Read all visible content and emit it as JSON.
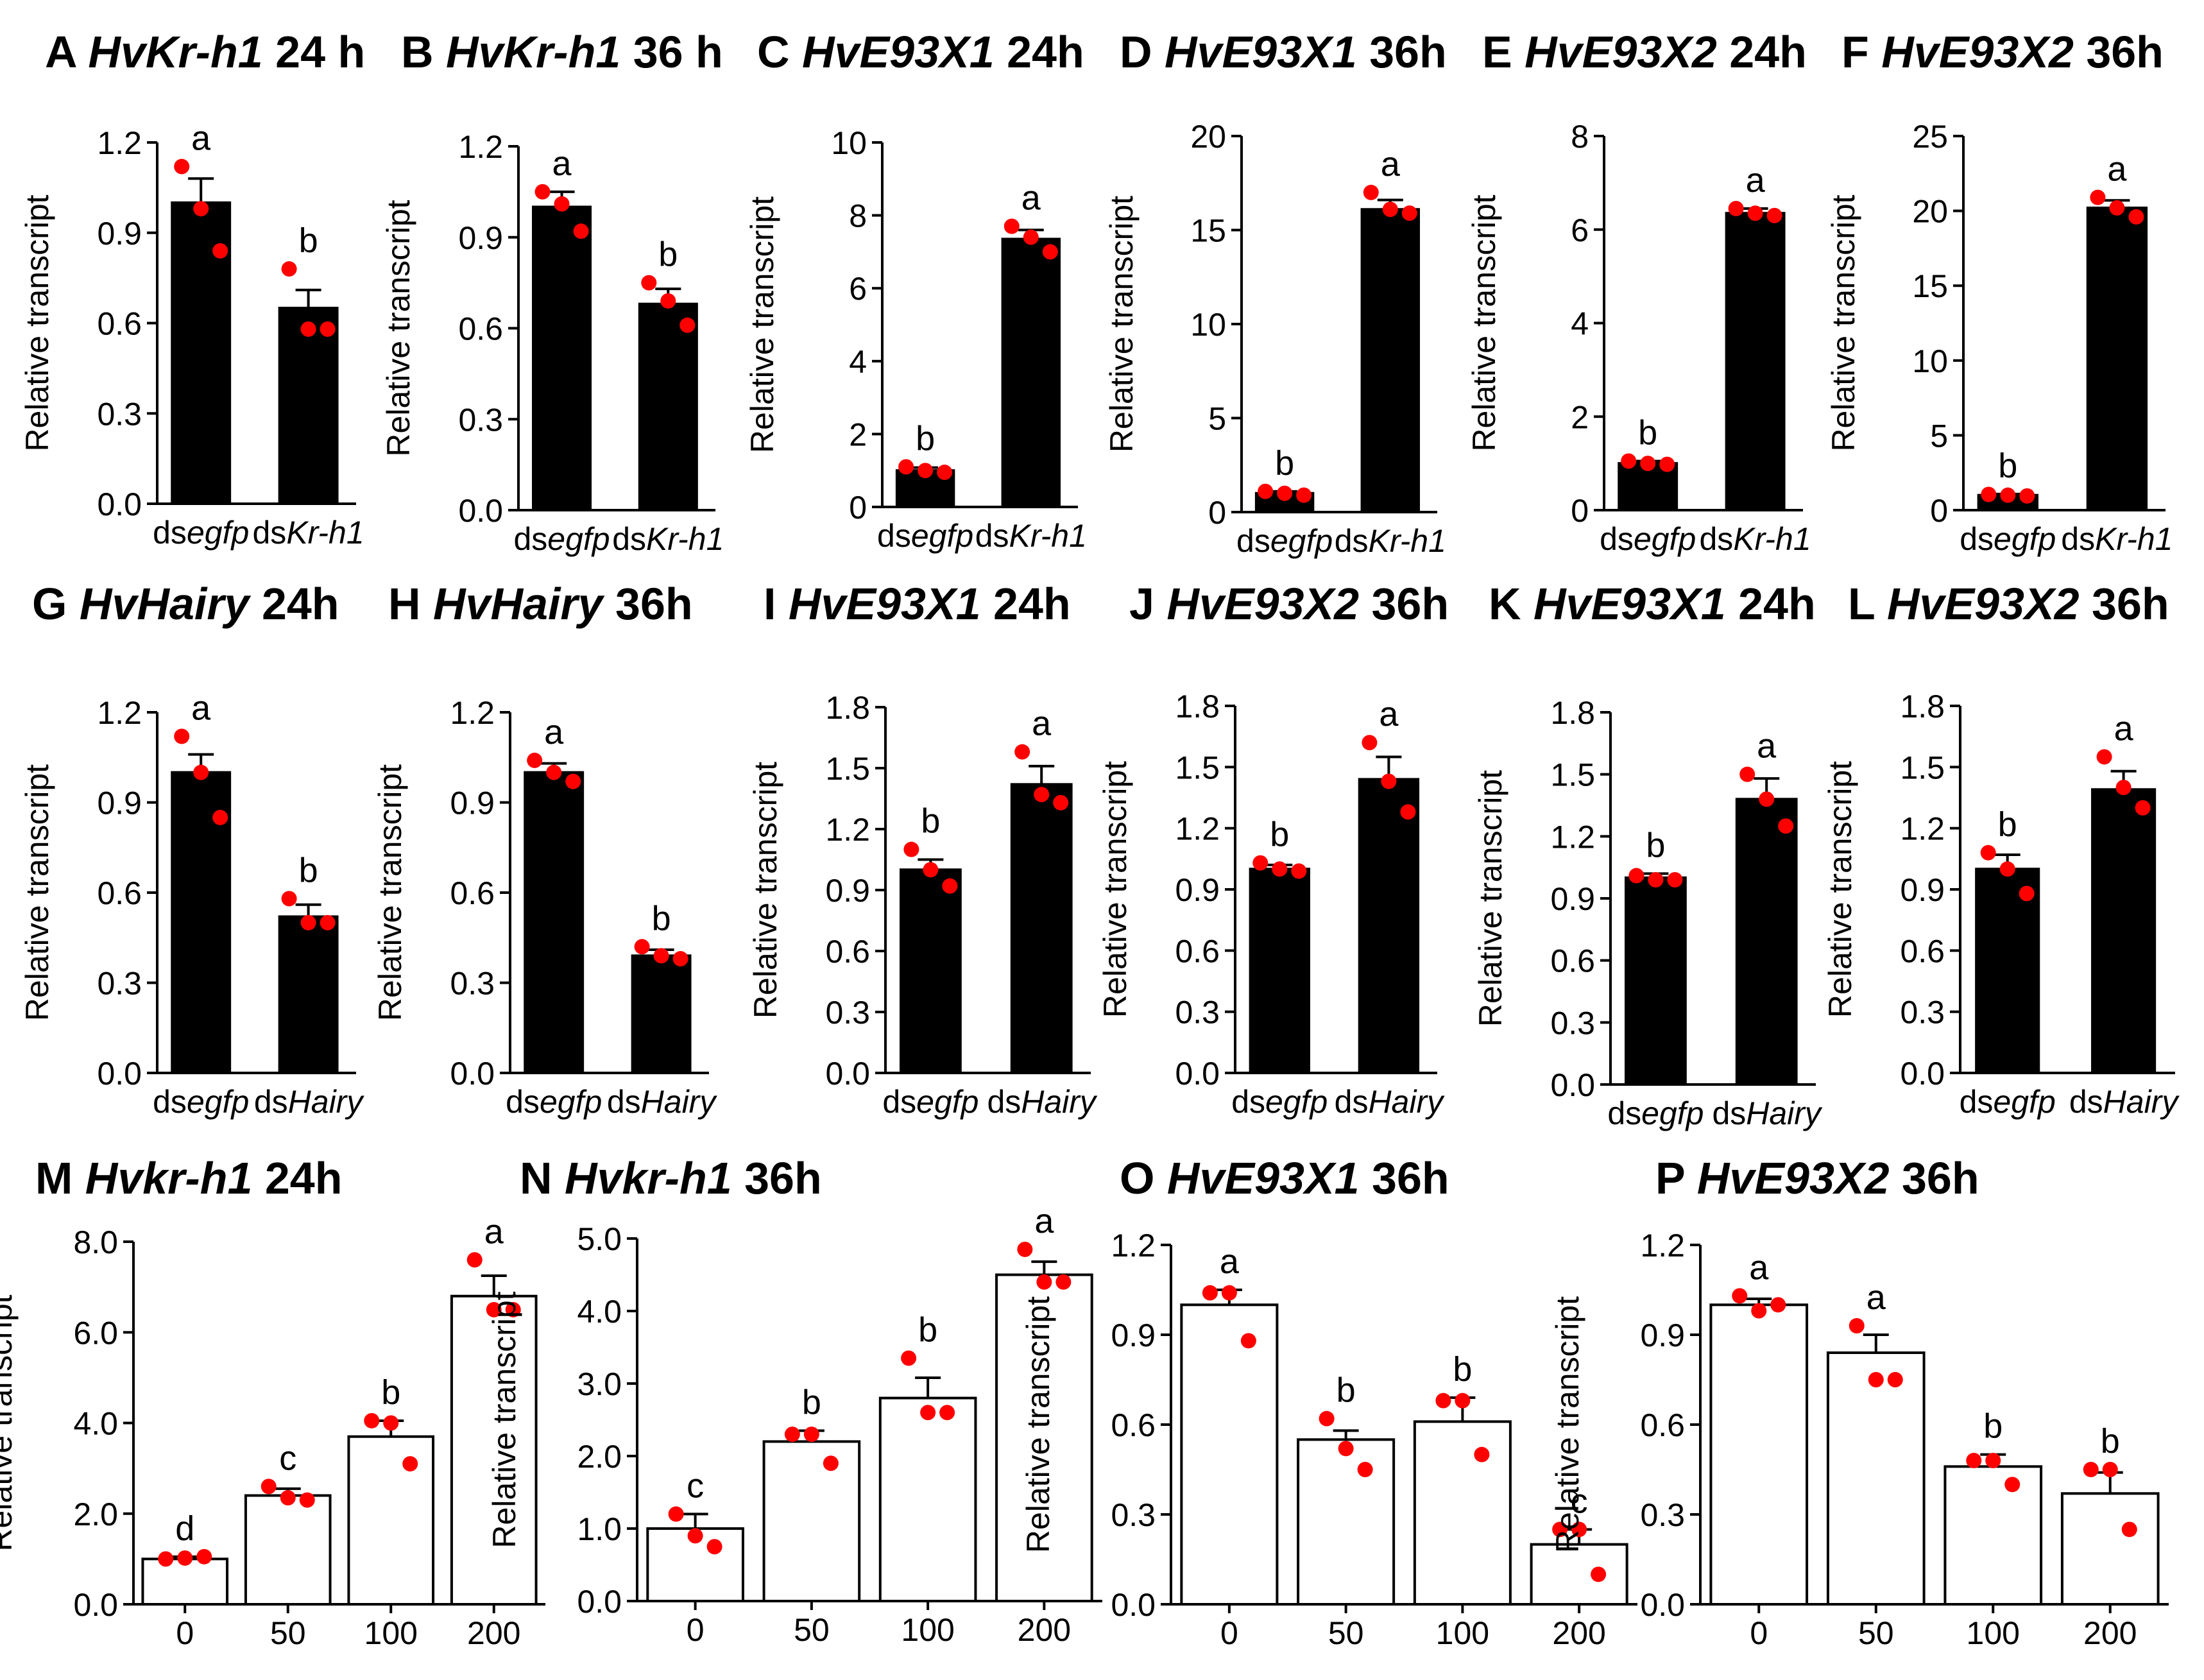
{
  "figure": {
    "background": "#ffffff",
    "colors": {
      "bar_solid": "#000000",
      "bar_open": "#ffffff",
      "points": "#ff0000",
      "axis": "#000000"
    }
  },
  "chart_data": [
    {
      "id": "A",
      "type": "bar",
      "title": {
        "letter": "A",
        "gene": "HvKr-h1",
        "time": " 24 h"
      },
      "ylabel": "Relative  transcript",
      "ylim": [
        0,
        1.2
      ],
      "ticks": [
        "0.0",
        "0.3",
        "0.6",
        "0.9",
        "1.2"
      ],
      "bar_style": "solid",
      "categories": [
        {
          "prefix": "ds",
          "italic": "egfp"
        },
        {
          "prefix": "ds",
          "italic": "Kr-h1"
        }
      ],
      "values": [
        1.0,
        0.65
      ],
      "errors": [
        0.08,
        0.06
      ],
      "letters": [
        "a",
        "b"
      ],
      "points": [
        [
          1.12,
          0.98,
          0.84
        ],
        [
          0.78,
          0.58,
          0.58
        ]
      ]
    },
    {
      "id": "B",
      "type": "bar",
      "title": {
        "letter": "B",
        "gene": "HvKr-h1",
        "time": " 36 h"
      },
      "ylabel": "Relative  transcript",
      "ylim": [
        0,
        1.2
      ],
      "ticks": [
        "0.0",
        "0.3",
        "0.6",
        "0.9",
        "1.2"
      ],
      "bar_style": "solid",
      "categories": [
        {
          "prefix": "ds",
          "italic": "egfp"
        },
        {
          "prefix": "ds",
          "italic": "Kr-h1"
        }
      ],
      "values": [
        1.0,
        0.68
      ],
      "errors": [
        0.05,
        0.05
      ],
      "letters": [
        "a",
        "b"
      ],
      "points": [
        [
          1.05,
          1.01,
          0.92
        ],
        [
          0.75,
          0.69,
          0.61
        ]
      ]
    },
    {
      "id": "C",
      "type": "bar",
      "title": {
        "letter": "C",
        "gene": "HvE93X1",
        "time": " 24h"
      },
      "ylabel": "Relative  transcript",
      "ylim": [
        0,
        10
      ],
      "ticks": [
        "0",
        "2",
        "4",
        "6",
        "8",
        "10"
      ],
      "bar_style": "solid",
      "categories": [
        {
          "prefix": "ds",
          "italic": "egfp"
        },
        {
          "prefix": "ds",
          "italic": "Kr-h1"
        }
      ],
      "values": [
        1.0,
        7.35
      ],
      "errors": [
        0.08,
        0.25
      ],
      "letters": [
        "b",
        "a"
      ],
      "points": [
        [
          1.1,
          1.0,
          0.95
        ],
        [
          7.7,
          7.4,
          7.0
        ]
      ]
    },
    {
      "id": "D",
      "type": "bar",
      "title": {
        "letter": "D",
        "gene": "HvE93X1",
        "time": " 36h"
      },
      "ylabel": "Relative  transcript",
      "ylim": [
        0,
        20
      ],
      "ticks": [
        "0",
        "5",
        "10",
        "15",
        "20"
      ],
      "bar_style": "solid",
      "categories": [
        {
          "prefix": "ds",
          "italic": "egfp"
        },
        {
          "prefix": "ds",
          "italic": "Kr-h1"
        }
      ],
      "values": [
        1.0,
        16.1
      ],
      "errors": [
        0.1,
        0.5
      ],
      "letters": [
        "b",
        "a"
      ],
      "points": [
        [
          1.1,
          1.0,
          0.9
        ],
        [
          17.0,
          16.1,
          15.9
        ]
      ]
    },
    {
      "id": "E",
      "type": "bar",
      "title": {
        "letter": "E",
        "gene": "HvE93X2",
        "time": " 24h"
      },
      "ylabel": "Relative  transcript",
      "ylim": [
        0,
        8
      ],
      "ticks": [
        "0",
        "2",
        "4",
        "6",
        "8"
      ],
      "bar_style": "solid",
      "categories": [
        {
          "prefix": "ds",
          "italic": "egfp"
        },
        {
          "prefix": "ds",
          "italic": "Kr-h1"
        }
      ],
      "values": [
        1.0,
        6.35
      ],
      "errors": [
        0.05,
        0.1
      ],
      "letters": [
        "b",
        "a"
      ],
      "points": [
        [
          1.05,
          1.0,
          0.98
        ],
        [
          6.45,
          6.35,
          6.3
        ]
      ]
    },
    {
      "id": "F",
      "type": "bar",
      "title": {
        "letter": "F",
        "gene": "HvE93X2",
        "time": " 36h"
      },
      "ylabel": "Relative  transcript",
      "ylim": [
        0,
        25
      ],
      "ticks": [
        "0",
        "5",
        "10",
        "15",
        "20",
        "25"
      ],
      "bar_style": "solid",
      "categories": [
        {
          "prefix": "ds",
          "italic": "egfp"
        },
        {
          "prefix": "ds",
          "italic": "Kr-h1"
        }
      ],
      "values": [
        1.0,
        20.2
      ],
      "errors": [
        0.08,
        0.5
      ],
      "letters": [
        "b",
        "a"
      ],
      "points": [
        [
          1.05,
          1.0,
          0.95
        ],
        [
          20.9,
          20.2,
          19.6
        ]
      ]
    },
    {
      "id": "G",
      "type": "bar",
      "title": {
        "letter": "G",
        "gene": "HvHairy",
        "time": " 24h"
      },
      "ylabel": "Relative  transcript",
      "ylim": [
        0,
        1.2
      ],
      "ticks": [
        "0.0",
        "0.3",
        "0.6",
        "0.9",
        "1.2"
      ],
      "bar_style": "solid",
      "categories": [
        {
          "prefix": "ds",
          "italic": "egfp"
        },
        {
          "prefix": "ds",
          "italic": "Hairy"
        }
      ],
      "values": [
        1.0,
        0.52
      ],
      "errors": [
        0.06,
        0.04
      ],
      "letters": [
        "a",
        "b"
      ],
      "points": [
        [
          1.12,
          1.0,
          0.85
        ],
        [
          0.58,
          0.5,
          0.5
        ]
      ]
    },
    {
      "id": "H",
      "type": "bar",
      "title": {
        "letter": "H",
        "gene": "HvHairy",
        "time": " 36h"
      },
      "ylabel": "Relative  transcript",
      "ylim": [
        0,
        1.2
      ],
      "ticks": [
        "0.0",
        "0.3",
        "0.6",
        "0.9",
        "1.2"
      ],
      "bar_style": "solid",
      "categories": [
        {
          "prefix": "ds",
          "italic": "egfp"
        },
        {
          "prefix": "ds",
          "italic": "Hairy"
        }
      ],
      "values": [
        1.0,
        0.39
      ],
      "errors": [
        0.03,
        0.02
      ],
      "letters": [
        "a",
        "b"
      ],
      "points": [
        [
          1.04,
          1.0,
          0.97
        ],
        [
          0.42,
          0.39,
          0.38
        ]
      ]
    },
    {
      "id": "I",
      "type": "bar",
      "title": {
        "letter": "I",
        "gene": "HvE93X1",
        "time": " 24h"
      },
      "ylabel": "Relative  transcript",
      "ylim": [
        0,
        1.8
      ],
      "ticks": [
        "0.0",
        "0.3",
        "0.6",
        "0.9",
        "1.2",
        "1.5",
        "1.8"
      ],
      "bar_style": "solid",
      "categories": [
        {
          "prefix": "ds",
          "italic": "egfp"
        },
        {
          "prefix": "ds",
          "italic": "Hairy"
        }
      ],
      "values": [
        1.0,
        1.42
      ],
      "errors": [
        0.05,
        0.09
      ],
      "letters": [
        "b",
        "a"
      ],
      "points": [
        [
          1.1,
          1.0,
          0.92
        ],
        [
          1.58,
          1.37,
          1.33
        ]
      ]
    },
    {
      "id": "J",
      "type": "bar",
      "title": {
        "letter": "J",
        "gene": "HvE93X2",
        "time": " 36h"
      },
      "ylabel": "Relative  transcript",
      "ylim": [
        0,
        1.8
      ],
      "ticks": [
        "0.0",
        "0.3",
        "0.6",
        "0.9",
        "1.2",
        "1.5",
        "1.8"
      ],
      "bar_style": "solid",
      "categories": [
        {
          "prefix": "ds",
          "italic": "egfp"
        },
        {
          "prefix": "ds",
          "italic": "Hairy"
        }
      ],
      "values": [
        1.0,
        1.44
      ],
      "errors": [
        0.02,
        0.11
      ],
      "letters": [
        "b",
        "a"
      ],
      "points": [
        [
          1.03,
          1.0,
          0.99
        ],
        [
          1.62,
          1.43,
          1.28
        ]
      ]
    },
    {
      "id": "K",
      "type": "bar",
      "title": {
        "letter": "K",
        "gene": "HvE93X1",
        "time": " 24h"
      },
      "ylabel": "Relative  transcript",
      "ylim": [
        0,
        1.8
      ],
      "ticks": [
        "0.0",
        "0.3",
        "0.6",
        "0.9",
        "1.2",
        "1.5",
        "1.8"
      ],
      "bar_style": "solid",
      "categories": [
        {
          "prefix": "ds",
          "italic": "egfp"
        },
        {
          "prefix": "ds",
          "italic": "Hairy"
        }
      ],
      "values": [
        1.0,
        1.38
      ],
      "errors": [
        0.02,
        0.1
      ],
      "letters": [
        "b",
        "a"
      ],
      "points": [
        [
          1.01,
          0.99,
          0.99
        ],
        [
          1.5,
          1.38,
          1.25
        ]
      ]
    },
    {
      "id": "L",
      "type": "bar",
      "title": {
        "letter": "L",
        "gene": "HvE93X2",
        "time": " 36h"
      },
      "ylabel": "Relative  transcript",
      "ylim": [
        0,
        1.8
      ],
      "ticks": [
        "0.0",
        "0.3",
        "0.6",
        "0.9",
        "1.2",
        "1.5",
        "1.8"
      ],
      "bar_style": "solid",
      "categories": [
        {
          "prefix": "ds",
          "italic": "egfp"
        },
        {
          "prefix": "ds",
          "italic": "Hairy"
        }
      ],
      "values": [
        1.0,
        1.39
      ],
      "errors": [
        0.07,
        0.09
      ],
      "letters": [
        "b",
        "a"
      ],
      "points": [
        [
          1.08,
          1.0,
          0.88
        ],
        [
          1.55,
          1.4,
          1.3
        ]
      ]
    },
    {
      "id": "M",
      "type": "bar",
      "title": {
        "letter": "M",
        "gene": "Hvkr-h1",
        "time": " 24h"
      },
      "ylabel": "Relative  transcript",
      "ylim": [
        0,
        8
      ],
      "ticks": [
        "0.0",
        "2.0",
        "4.0",
        "6.0",
        "8.0"
      ],
      "bar_style": "open",
      "categories": [
        {
          "prefix": "0",
          "italic": ""
        },
        {
          "prefix": "50",
          "italic": ""
        },
        {
          "prefix": "100",
          "italic": ""
        },
        {
          "prefix": "200",
          "italic": ""
        }
      ],
      "values": [
        1.0,
        2.4,
        3.7,
        6.8
      ],
      "errors": [
        0.05,
        0.15,
        0.35,
        0.45
      ],
      "letters": [
        "d",
        "c",
        "b",
        "a"
      ],
      "points": [
        [
          1.0,
          1.02,
          1.05
        ],
        [
          2.6,
          2.35,
          2.3
        ],
        [
          4.05,
          4.0,
          3.1
        ],
        [
          7.6,
          6.5,
          6.5
        ]
      ]
    },
    {
      "id": "N",
      "type": "bar",
      "title": {
        "letter": "N",
        "gene": "Hvkr-h1",
        "time": " 36h"
      },
      "ylabel": "Relative  transcript",
      "ylim": [
        0,
        5
      ],
      "ticks": [
        "0.0",
        "1.0",
        "2.0",
        "3.0",
        "4.0",
        "5.0"
      ],
      "bar_style": "open",
      "categories": [
        {
          "prefix": "0",
          "italic": ""
        },
        {
          "prefix": "50",
          "italic": ""
        },
        {
          "prefix": "100",
          "italic": ""
        },
        {
          "prefix": "200",
          "italic": ""
        }
      ],
      "values": [
        1.0,
        2.2,
        2.8,
        4.5
      ],
      "errors": [
        0.2,
        0.15,
        0.28,
        0.18
      ],
      "letters": [
        "c",
        "b",
        "b",
        "a"
      ],
      "points": [
        [
          1.2,
          0.9,
          0.75
        ],
        [
          2.3,
          2.3,
          1.9
        ],
        [
          3.35,
          2.6,
          2.6
        ],
        [
          4.85,
          4.4,
          4.4
        ]
      ]
    },
    {
      "id": "O",
      "type": "bar",
      "title": {
        "letter": "O",
        "gene": "HvE93X1",
        "time": " 36h"
      },
      "ylabel": "Relative  transcript",
      "ylim": [
        0,
        1.2
      ],
      "ticks": [
        "0.0",
        "0.3",
        "0.6",
        "0.9",
        "1.2"
      ],
      "bar_style": "open",
      "categories": [
        {
          "prefix": "0",
          "italic": ""
        },
        {
          "prefix": "50",
          "italic": ""
        },
        {
          "prefix": "100",
          "italic": ""
        },
        {
          "prefix": "200",
          "italic": ""
        }
      ],
      "values": [
        1.0,
        0.55,
        0.61,
        0.2
      ],
      "errors": [
        0.05,
        0.03,
        0.08,
        0.05
      ],
      "letters": [
        "a",
        "b",
        "b",
        "c"
      ],
      "points": [
        [
          1.04,
          1.04,
          0.88
        ],
        [
          0.62,
          0.52,
          0.45
        ],
        [
          0.68,
          0.68,
          0.5
        ],
        [
          0.25,
          0.25,
          0.1
        ]
      ]
    },
    {
      "id": "P",
      "type": "bar",
      "title": {
        "letter": "P",
        "gene": "HvE93X2",
        "time": " 36h"
      },
      "ylabel": "Relative  transcript",
      "ylim": [
        0,
        1.2
      ],
      "ticks": [
        "0.0",
        "0.3",
        "0.6",
        "0.9",
        "1.2"
      ],
      "bar_style": "open",
      "categories": [
        {
          "prefix": "0",
          "italic": ""
        },
        {
          "prefix": "50",
          "italic": ""
        },
        {
          "prefix": "100",
          "italic": ""
        },
        {
          "prefix": "200",
          "italic": ""
        }
      ],
      "values": [
        1.0,
        0.84,
        0.46,
        0.37
      ],
      "errors": [
        0.02,
        0.06,
        0.04,
        0.07
      ],
      "letters": [
        "a",
        "a",
        "b",
        "b"
      ],
      "points": [
        [
          1.03,
          0.98,
          1.0
        ],
        [
          0.93,
          0.75,
          0.75
        ],
        [
          0.48,
          0.48,
          0.4
        ],
        [
          0.45,
          0.45,
          0.25
        ]
      ]
    }
  ]
}
